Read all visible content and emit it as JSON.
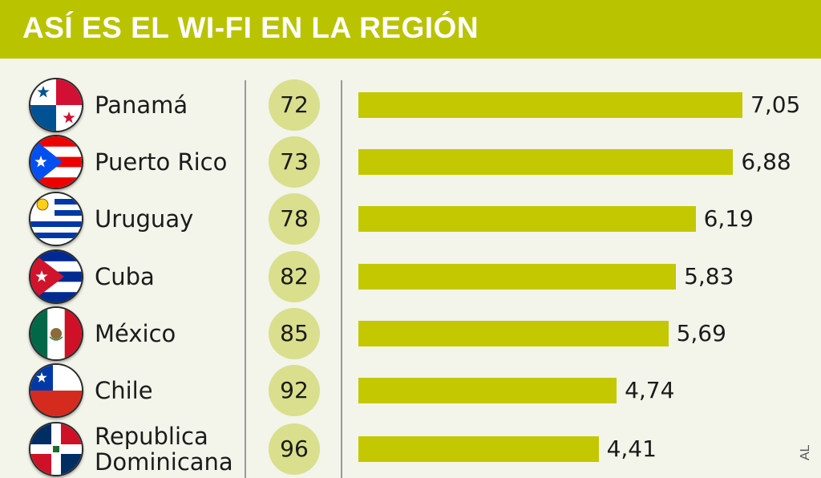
{
  "header": {
    "title": "ASÍ ES EL WI-FI EN LA REGIÓN"
  },
  "credit": "AL",
  "colors": {
    "header": "#b9c300",
    "bar": "#c3c800",
    "rank_circle": "#d9df8c",
    "background": "#f3f4ea"
  },
  "chart_data": {
    "type": "bar",
    "orientation": "horizontal",
    "title": "ASÍ ES EL WI-FI EN LA REGIÓN",
    "categories": [
      "Panamá",
      "Puerto Rico",
      "Uruguay",
      "Cuba",
      "México",
      "Chile",
      "Republica Dominicana"
    ],
    "ranks": [
      "72",
      "73",
      "78",
      "82",
      "85",
      "92",
      "96"
    ],
    "values": [
      7.05,
      6.88,
      6.19,
      5.83,
      5.69,
      4.74,
      4.41
    ],
    "value_labels": [
      "7,05",
      "6,88",
      "6,19",
      "5,83",
      "5,69",
      "4,74",
      "4,41"
    ],
    "flag_icons": [
      "panama-flag-icon",
      "puerto-rico-flag-icon",
      "uruguay-flag-icon",
      "cuba-flag-icon",
      "mexico-flag-icon",
      "chile-flag-icon",
      "dominican-republic-flag-icon"
    ],
    "xlim": [
      0,
      7.5
    ],
    "grid": false
  }
}
